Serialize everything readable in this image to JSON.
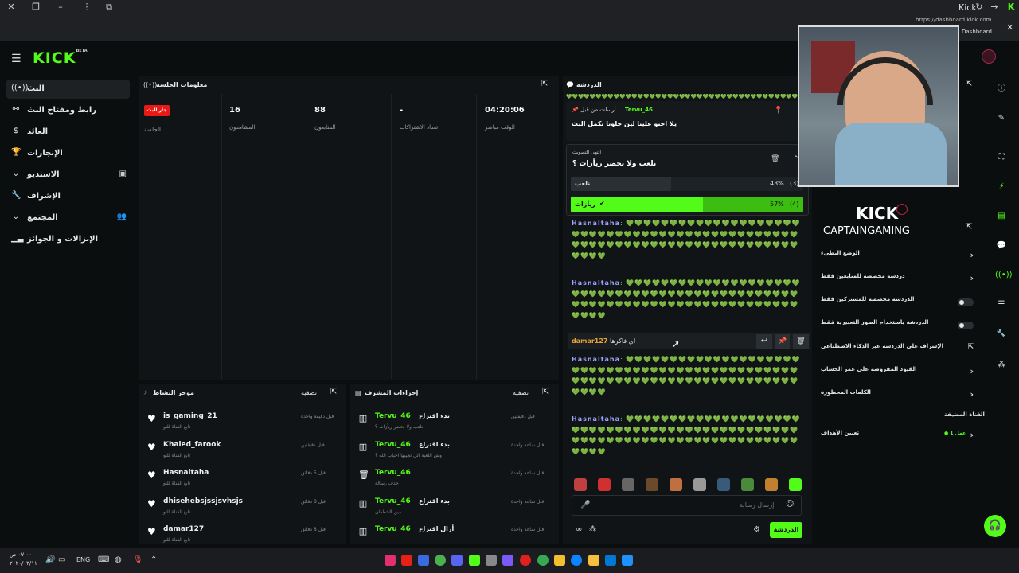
{
  "browser": {
    "title": "Kick",
    "dashboard_url": "https://dashboard.kick.com",
    "dashboard_label": "Dashboard"
  },
  "brand": {
    "logo": "KICK",
    "beta": "BETA",
    "accent": "#53fc18"
  },
  "sidebar": {
    "items": [
      {
        "label": "البث",
        "icon": "broadcast-icon"
      },
      {
        "label": "رابط ومفتاح البث",
        "icon": "link-icon"
      },
      {
        "label": "العائد",
        "icon": "money-icon"
      },
      {
        "label": "الإنجازات",
        "icon": "trophy-icon"
      },
      {
        "label": "الاستديو",
        "icon": "chevron-down-icon"
      },
      {
        "label": "الإشراف",
        "icon": "wrench-icon"
      },
      {
        "label": "المجتمع",
        "icon": "chevron-down-icon"
      },
      {
        "label": "الإنزالات و الجوائز",
        "icon": "chart-icon"
      }
    ]
  },
  "session": {
    "title": "معلومات الجلسة",
    "live_badge": "جار البث",
    "live_label": "الجلسة",
    "stats": [
      {
        "value": "16",
        "label": "المشاهدون"
      },
      {
        "value": "88",
        "label": "المتابعون"
      },
      {
        "value": "-",
        "label": "تعداد الاشتراكات"
      },
      {
        "value": "04:20:06",
        "label": "الوقت مباشر"
      }
    ]
  },
  "activity": {
    "title": "موجز النشاط",
    "filter": "تصفية",
    "rows": [
      {
        "name": "is_gaming_21",
        "sub": "تابع القناة للتو",
        "time": "قبل دقيقة واحدة"
      },
      {
        "name": "Khaled_farook",
        "sub": "تابع القناة للتو",
        "time": "قبل دقيقتين"
      },
      {
        "name": "Hasnaltaha",
        "sub": "تابع القناة للتو",
        "time": "قبل 5 دقائق"
      },
      {
        "name": "dhisehebsjssjsvhsjs",
        "sub": "تابع القناة للتو",
        "time": "قبل 8 دقائق"
      },
      {
        "name": "damar127",
        "sub": "تابع القناة للتو",
        "time": "قبل 8 دقائق"
      }
    ]
  },
  "modactions": {
    "title": "إجراءات المشرف",
    "filter": "تصفية",
    "rows": [
      {
        "user": "Tervu_46",
        "action": "بدء اقتراع",
        "sub": "نلعب ولا نحضر ريأزات ؟",
        "time": "قبل دقيقتين",
        "icon": "poll-icon"
      },
      {
        "user": "Tervu_46",
        "action": "بدء اقتراع",
        "sub": "وش اللعبة الي تجيبها احباب الله ؟",
        "time": "قبل ساعة واحدة",
        "icon": "poll-icon"
      },
      {
        "user": "Tervu_46",
        "action": "",
        "sub": "حذف رسالة",
        "time": "قبل ساعة واحدة",
        "icon": "trash-icon"
      },
      {
        "user": "Tervu_46",
        "action": "بدء اقتراع",
        "sub": "مين الخطفان",
        "time": "قبل ساعة واحدة",
        "icon": "poll-icon"
      },
      {
        "user": "Tervu_46",
        "action": "أزال اقتراع",
        "sub": "",
        "time": "قبل ساعة واحدة",
        "icon": "poll-icon"
      }
    ]
  },
  "chat": {
    "title": "الدردشة",
    "pinned": {
      "label": "أرسلت من قبل",
      "user": "Tervu_46",
      "text": "يلا احنو علينا لين خلونا نكمل البث"
    },
    "poll": {
      "status": "انتهى التصويت",
      "question": "نلعب ولا نحضر ريأزات ؟",
      "options": [
        {
          "label": "نلعب",
          "percent": "43%",
          "votes": "(3)",
          "fraction": 0.43
        },
        {
          "label": "ريأزات",
          "percent": "57%",
          "votes": "(4)",
          "fraction": 0.57
        }
      ]
    },
    "messages": [
      {
        "user": "Hasnaltaha",
        "text": "💚💚💚💚💚💚💚💚💚💚💚💚💚💚💚💚💚💚💚💚💚💚💚💚💚💚💚💚💚💚💚💚💚💚💚💚💚💚💚💚💚💚💚💚💚💚💚💚💚💚💚💚💚💚💚💚💚💚💚💚💚💚💚💚💚💚💚💚💚💚💚💚💚💚💚💚"
      },
      {
        "user": "Hasnaltaha",
        "text": "💚💚💚💚💚💚💚💚💚💚💚💚💚💚💚💚💚💚💚💚💚💚💚💚💚💚💚💚💚💚💚💚💚💚💚💚💚💚💚💚💚💚💚💚💚💚💚💚💚💚💚💚💚💚💚💚💚💚💚💚💚💚💚💚💚💚💚💚💚💚💚💚💚💚💚💚"
      },
      {
        "user": "damar127",
        "text": "اي فاكرها"
      },
      {
        "user": "Hasnaltaha",
        "text": "💚💚💚💚💚💚💚💚💚💚💚💚💚💚💚💚💚💚💚💚💚💚💚💚💚💚💚💚💚💚💚💚💚💚💚💚💚💚💚💚💚💚💚💚💚💚💚💚💚💚💚💚💚💚💚💚💚💚💚💚💚💚💚💚💚💚💚💚💚💚💚💚💚💚💚💚"
      },
      {
        "user": "Hasnaltaha",
        "text": "💚💚💚💚💚💚💚💚💚💚💚💚💚💚💚💚💚💚💚💚💚💚💚💚💚💚💚💚💚💚💚💚💚💚💚💚💚💚💚💚💚💚💚💚💚💚💚💚💚💚💚💚💚💚💚💚💚💚💚💚💚💚💚💚💚💚💚💚💚💚💚💚💚💚💚💚"
      }
    ],
    "input_placeholder": "إرسال رسالة",
    "send_button": "الدردشة"
  },
  "webcam": {
    "overlay_brand": "KICK",
    "overlay_name": "CAPTAINGAMING"
  },
  "modsettings": {
    "items": [
      {
        "label": "الوضع البطيء",
        "control": "chevron"
      },
      {
        "label": "دردشة مخصصة للمتابعين فقط",
        "control": "chevron"
      },
      {
        "label": "الدردشة مخصصة للمشتركين فقط",
        "control": "toggle"
      },
      {
        "label": "الدردشة باستخدام الصور التعبيرية فقط",
        "control": "toggle"
      },
      {
        "label": "الإشراف على الدردشة عبر الذكاء الاصطناعي",
        "control": "link"
      },
      {
        "label": "القيود المفروضة على عمر الحساب",
        "control": "chevron"
      },
      {
        "label": "الكلمات المحظورة",
        "control": "chevron"
      }
    ],
    "section": "القناة المضيفة",
    "goals_label": "تعيين الأهداف",
    "goals_value": "● 1 عمل"
  },
  "taskbar": {
    "language": "ENG",
    "time": "٠٧:٠٠ ص",
    "date": "٢٠٢٠/٠٣/١١"
  }
}
